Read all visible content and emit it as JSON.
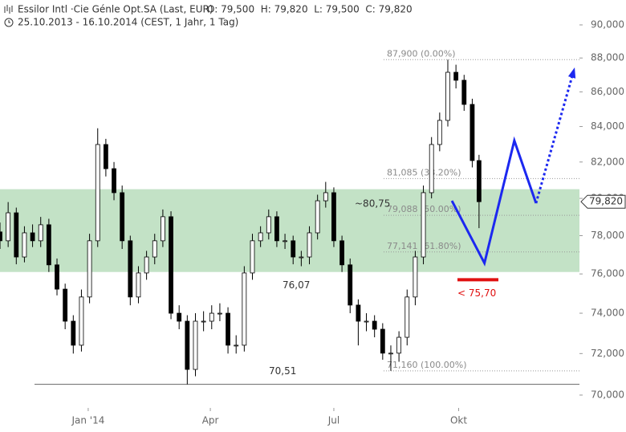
{
  "chart_data": {
    "type": "candlestick",
    "title": "Essilor Intl ·Cie Génle Opt.SA (Last, EUR)",
    "quote": "O: 79,500  H: 79,820  L: 79,500  C: 79,820",
    "subtitle": "25.10.2013 - 16.10.2014 (CEST, 1 Jahr, 1 Tag)",
    "log_scale": true,
    "grid": false,
    "xlim": [
      3,
      430
    ],
    "xticks": [
      {
        "value": 68,
        "label": "Jan '14"
      },
      {
        "value": 158,
        "label": "Apr"
      },
      {
        "value": 249,
        "label": "Jul"
      },
      {
        "value": 341,
        "label": "Okt"
      }
    ],
    "ylim": [
      70,
      90
    ],
    "yticks": [
      {
        "value": 70,
        "label": "70,000"
      },
      {
        "value": 72,
        "label": "72,000"
      },
      {
        "value": 74,
        "label": "74,000"
      },
      {
        "value": 76,
        "label": "76,000"
      },
      {
        "value": 78,
        "label": "78,000"
      },
      {
        "value": 80,
        "label": "80,000"
      },
      {
        "value": 82,
        "label": "82,000"
      },
      {
        "value": 84,
        "label": "84,000"
      },
      {
        "value": 86,
        "label": "86,000"
      },
      {
        "value": 88,
        "label": "88,000"
      },
      {
        "value": 90,
        "label": "90,000"
      }
    ],
    "up_color": "#ffffff",
    "down_color": "#000000",
    "x": [
      3,
      9,
      15,
      21,
      27,
      33,
      39,
      45,
      51,
      57,
      63,
      69,
      75,
      81,
      87,
      93,
      99,
      105,
      111,
      117,
      123,
      129,
      135,
      141,
      147,
      153,
      159,
      165,
      171,
      177,
      183,
      189,
      195,
      201,
      207,
      213,
      219,
      225,
      231,
      237,
      243,
      249,
      255,
      261,
      267,
      273,
      279,
      285,
      291,
      297,
      303,
      309,
      315,
      321,
      327,
      333,
      339,
      345,
      351,
      356
    ],
    "open": [
      78.2,
      77.73,
      79.22,
      76.88,
      78.15,
      77.73,
      78.58,
      76.47,
      75.22,
      73.6,
      72.41,
      74.82,
      77.73,
      82.98,
      81.63,
      80.31,
      77.73,
      74.82,
      76.05,
      76.88,
      77.73,
      79.01,
      74.0,
      73.6,
      71.23,
      73.6,
      73.6,
      74.0,
      74.0,
      72.41,
      72.41,
      76.05,
      77.73,
      78.15,
      79.01,
      77.73,
      77.73,
      76.88,
      76.88,
      78.15,
      79.87,
      80.31,
      77.73,
      76.47,
      74.41,
      73.6,
      73.6,
      73.2,
      72.02,
      72.02,
      72.8,
      74.82,
      76.88,
      80.31,
      82.98,
      84.35,
      87.15,
      86.68,
      85.27,
      82.08
    ],
    "high": [
      78.7,
      79.8,
      79.5,
      78.5,
      78.6,
      79.0,
      78.9,
      76.8,
      75.5,
      73.9,
      75.2,
      78.1,
      83.9,
      83.3,
      82.0,
      80.7,
      78.0,
      76.4,
      77.2,
      78.1,
      79.4,
      79.3,
      74.4,
      73.9,
      74.0,
      74.1,
      74.4,
      74.5,
      74.3,
      72.9,
      76.4,
      78.1,
      78.5,
      79.4,
      79.3,
      78.1,
      78.0,
      77.2,
      78.5,
      80.2,
      80.9,
      80.6,
      78.0,
      76.8,
      74.7,
      74.0,
      73.9,
      73.5,
      72.4,
      73.1,
      75.2,
      77.2,
      80.7,
      83.4,
      84.8,
      87.9,
      87.6,
      87.0,
      85.6,
      82.4
    ],
    "low": [
      77.3,
      77.4,
      76.5,
      76.6,
      77.4,
      77.4,
      76.1,
      74.9,
      73.2,
      72.0,
      72.1,
      74.5,
      77.4,
      81.2,
      79.9,
      77.3,
      74.4,
      74.5,
      75.7,
      76.5,
      77.4,
      73.7,
      73.2,
      70.51,
      70.9,
      73.1,
      73.2,
      73.6,
      72.0,
      72.0,
      72.1,
      75.7,
      77.4,
      77.8,
      77.4,
      77.3,
      76.5,
      76.4,
      76.5,
      77.8,
      79.5,
      77.4,
      76.1,
      74.0,
      72.4,
      73.1,
      72.8,
      71.7,
      71.16,
      71.6,
      72.4,
      74.4,
      76.5,
      80.0,
      82.6,
      84.0,
      86.2,
      84.9,
      81.7,
      78.4
    ],
    "close": [
      77.73,
      79.22,
      76.88,
      78.15,
      77.73,
      78.58,
      76.47,
      75.22,
      73.6,
      72.41,
      74.82,
      77.73,
      82.98,
      81.63,
      80.31,
      77.73,
      74.82,
      76.05,
      76.88,
      77.73,
      79.01,
      74.0,
      73.6,
      71.23,
      73.6,
      73.6,
      74.0,
      74.0,
      72.41,
      72.41,
      76.05,
      77.73,
      78.15,
      79.01,
      77.73,
      77.73,
      76.88,
      76.88,
      78.15,
      79.87,
      80.31,
      77.73,
      76.47,
      74.41,
      73.6,
      73.6,
      73.2,
      72.02,
      72.02,
      72.8,
      74.82,
      76.88,
      80.31,
      82.98,
      84.35,
      87.15,
      86.68,
      85.27,
      82.08,
      79.82
    ],
    "zone": {
      "color": "#c3e2c6",
      "values": [
        76.1,
        80.5
      ]
    },
    "fib_levels": [
      {
        "value": 87.9,
        "label": "87,900 (0.00%)"
      },
      {
        "value": 81.085,
        "label": "81,085 (38.20%)"
      },
      {
        "value": 79.088,
        "label": "79,088 (50.00%)"
      },
      {
        "value": 77.141,
        "label": "77,141 (61.80%)"
      },
      {
        "value": 71.16,
        "label": "71,160 (100.00%)"
      }
    ],
    "levels": [
      {
        "value": 80.75,
        "label": "~80,75"
      },
      {
        "value": 76.07,
        "label": "76,07"
      },
      {
        "value": 70.51,
        "label": "70,51"
      },
      {
        "value": 75.7,
        "label": "< 75,70",
        "color": "#e01010"
      }
    ],
    "projection": {
      "color": "#1c28f0",
      "x": [
        336,
        360,
        382,
        398
      ],
      "values": [
        79.87,
        76.56,
        83.2,
        79.74
      ]
    },
    "projection_dotted": {
      "color": "#1c28f0",
      "x": [
        398,
        426
      ],
      "values": [
        79.74,
        87.3
      ]
    },
    "last_price": {
      "value": 79.82,
      "label": "79,820"
    }
  }
}
